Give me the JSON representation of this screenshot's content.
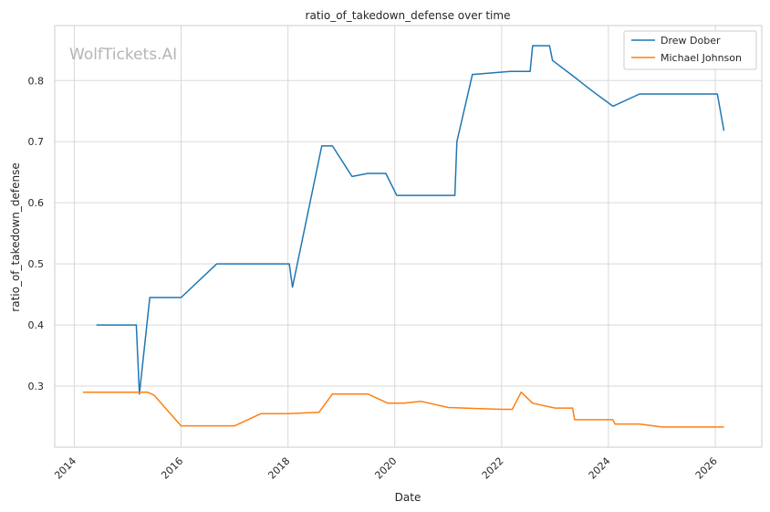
{
  "watermark": "WolfTickets.AI",
  "chart_data": {
    "type": "line",
    "title": "ratio_of_takedown_defense over time",
    "xlabel": "Date",
    "ylabel": "ratio_of_takedown_defense",
    "x_ticks": [
      "2014",
      "2016",
      "2018",
      "2020",
      "2022",
      "2024",
      "2026"
    ],
    "y_ticks": [
      "0.3",
      "0.4",
      "0.5",
      "0.6",
      "0.7",
      "0.8"
    ],
    "xlim": [
      "2013-08-20",
      "2026-11-15"
    ],
    "ylim": [
      0.2,
      0.89
    ],
    "grid": true,
    "legend_position": "top-right",
    "series": [
      {
        "name": "Drew Dober",
        "color": "#1f77b4",
        "points": [
          [
            "2014-06-01",
            0.4
          ],
          [
            "2015-03-01",
            0.4
          ],
          [
            "2015-03-22",
            0.287
          ],
          [
            "2015-06-01",
            0.445
          ],
          [
            "2016-01-01",
            0.445
          ],
          [
            "2016-09-01",
            0.5
          ],
          [
            "2017-06-01",
            0.5
          ],
          [
            "2018-01-10",
            0.5
          ],
          [
            "2018-02-01",
            0.462
          ],
          [
            "2018-08-20",
            0.693
          ],
          [
            "2018-11-01",
            0.693
          ],
          [
            "2019-03-15",
            0.643
          ],
          [
            "2019-07-01",
            0.648
          ],
          [
            "2019-11-01",
            0.648
          ],
          [
            "2020-01-15",
            0.612
          ],
          [
            "2020-06-01",
            0.612
          ],
          [
            "2021-02-15",
            0.612
          ],
          [
            "2021-03-01",
            0.7
          ],
          [
            "2021-06-15",
            0.81
          ],
          [
            "2022-03-01",
            0.815
          ],
          [
            "2022-07-15",
            0.815
          ],
          [
            "2022-08-01",
            0.857
          ],
          [
            "2022-11-25",
            0.857
          ],
          [
            "2022-12-15",
            0.833
          ],
          [
            "2023-05-01",
            0.808
          ],
          [
            "2023-09-01",
            0.785
          ],
          [
            "2024-02-01",
            0.758
          ],
          [
            "2024-08-01",
            0.778
          ],
          [
            "2025-06-01",
            0.778
          ],
          [
            "2026-01-15",
            0.778
          ],
          [
            "2026-03-01",
            0.718
          ]
        ]
      },
      {
        "name": "Michael Johnson",
        "color": "#ff7f0e",
        "points": [
          [
            "2014-03-01",
            0.29
          ],
          [
            "2015-01-01",
            0.29
          ],
          [
            "2015-05-15",
            0.29
          ],
          [
            "2015-07-01",
            0.285
          ],
          [
            "2016-01-01",
            0.235
          ],
          [
            "2016-06-01",
            0.235
          ],
          [
            "2017-01-01",
            0.235
          ],
          [
            "2017-07-01",
            0.255
          ],
          [
            "2018-01-01",
            0.255
          ],
          [
            "2018-08-01",
            0.257
          ],
          [
            "2018-11-01",
            0.287
          ],
          [
            "2019-07-01",
            0.287
          ],
          [
            "2019-11-15",
            0.272
          ],
          [
            "2020-03-01",
            0.272
          ],
          [
            "2020-07-01",
            0.275
          ],
          [
            "2021-01-01",
            0.265
          ],
          [
            "2022-01-01",
            0.262
          ],
          [
            "2022-03-15",
            0.262
          ],
          [
            "2022-05-15",
            0.29
          ],
          [
            "2022-08-01",
            0.272
          ],
          [
            "2023-01-01",
            0.264
          ],
          [
            "2023-05-01",
            0.264
          ],
          [
            "2023-05-15",
            0.245
          ],
          [
            "2024-02-01",
            0.245
          ],
          [
            "2024-02-15",
            0.238
          ],
          [
            "2024-08-01",
            0.238
          ],
          [
            "2025-01-01",
            0.233
          ],
          [
            "2026-01-01",
            0.233
          ],
          [
            "2026-03-01",
            0.233
          ]
        ]
      }
    ]
  }
}
